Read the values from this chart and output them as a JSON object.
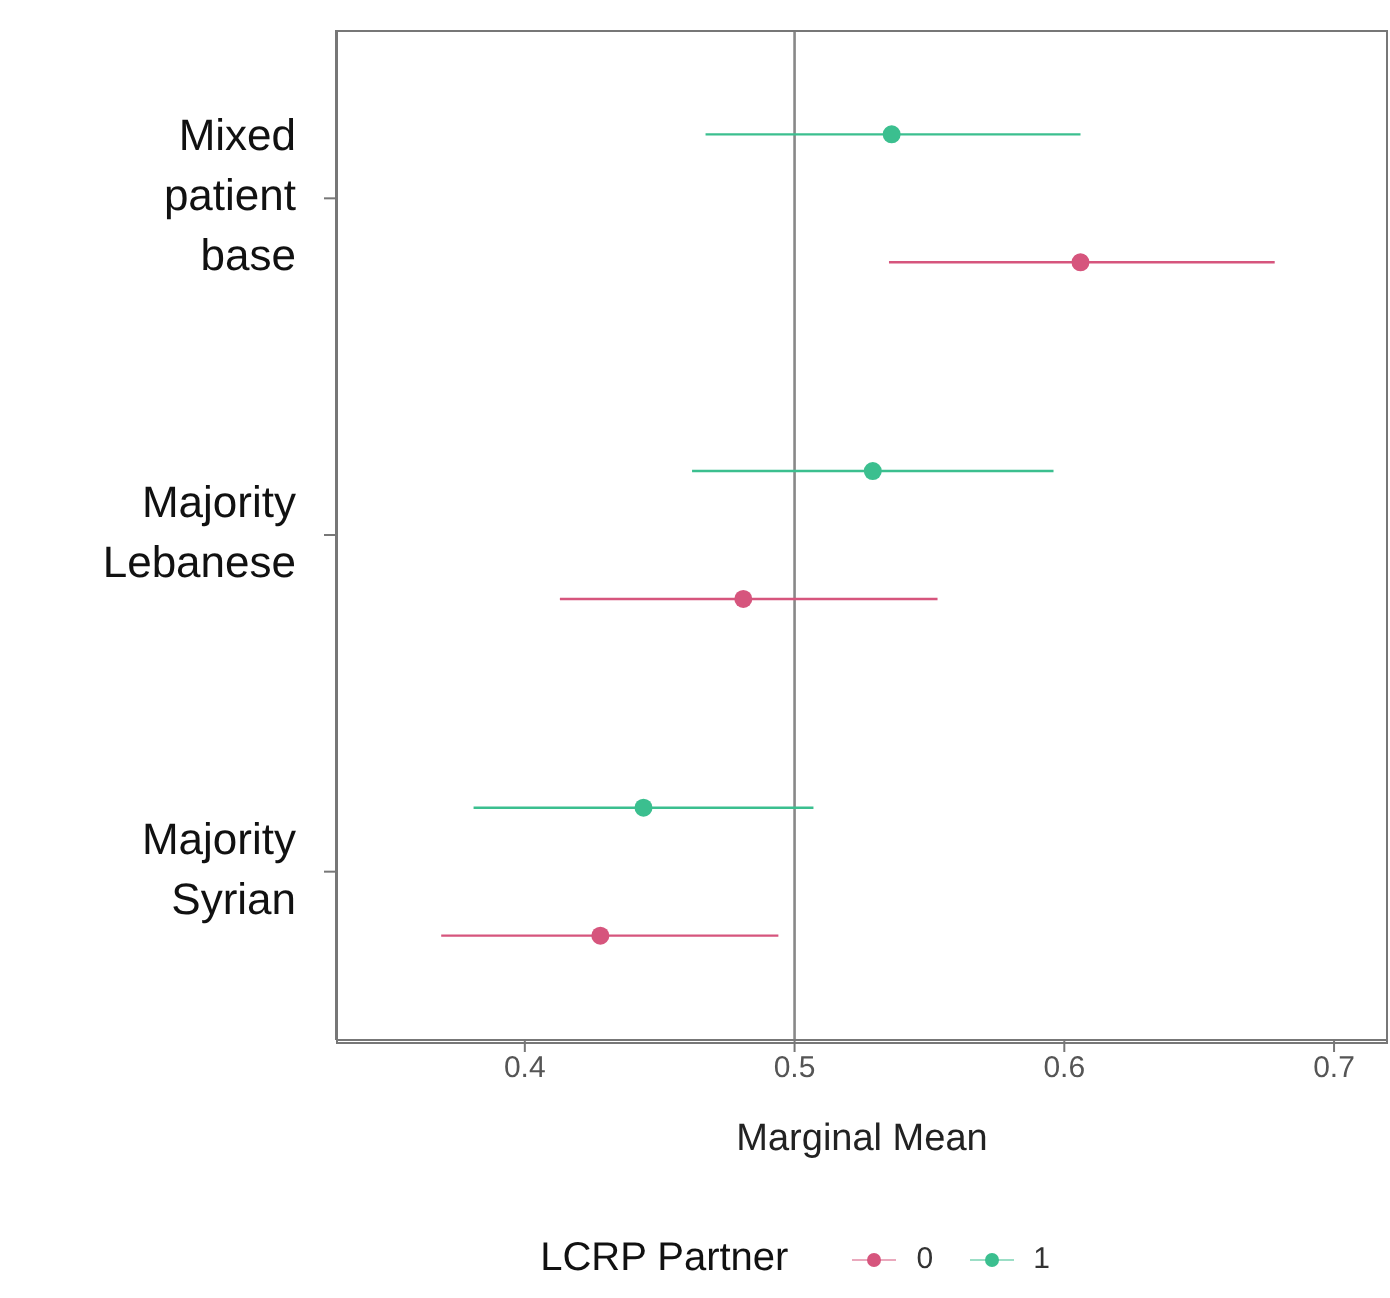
{
  "chart_data": {
    "type": "scatter",
    "orientation": "horizontal",
    "xlabel": "Marginal Mean",
    "legend_title": "LCRP Partner",
    "categories": [
      "Mixed patient base",
      "Majority Lebanese",
      "Majority Syrian"
    ],
    "series": [
      {
        "name": "0",
        "color": "#d6557d",
        "values": [
          0.606,
          0.481,
          0.428
        ],
        "errors": [
          [
            0.535,
            0.678
          ],
          [
            0.413,
            0.553
          ],
          [
            0.369,
            0.494
          ]
        ]
      },
      {
        "name": "1",
        "color": "#3bbf8f",
        "values": [
          0.536,
          0.529,
          0.444
        ],
        "errors": [
          [
            0.467,
            0.606
          ],
          [
            0.462,
            0.596
          ],
          [
            0.381,
            0.507
          ]
        ]
      }
    ],
    "xlim": [
      0.33,
      0.72
    ],
    "xticks": [
      0.4,
      0.5,
      0.6,
      0.7
    ],
    "ref_lines": [
      {
        "axis": "x",
        "value": 0.5,
        "color": "#888888"
      }
    ],
    "grid": false,
    "legend": "bottom",
    "marker": "circle"
  }
}
